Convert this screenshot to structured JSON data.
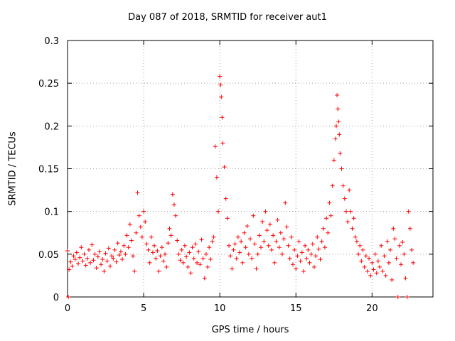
{
  "chart_data": {
    "type": "scatter",
    "title": "Day 087 of 2018, SRMTID for receiver aut1",
    "xlabel": "GPS time / hours",
    "ylabel": "SRMTID / TECUs",
    "xlim": [
      0,
      24
    ],
    "ylim": [
      0,
      0.3
    ],
    "xticks": [
      0,
      5,
      10,
      15,
      20
    ],
    "xtick_labels": [
      "0",
      "5",
      "10",
      "15",
      "20"
    ],
    "yticks": [
      0,
      0.05,
      0.1,
      0.15,
      0.2,
      0.25,
      0.3
    ],
    "ytick_labels": [
      "0",
      "0.05",
      "0.1",
      "0.15",
      "0.2",
      "0.25",
      "0.3"
    ],
    "grid": true,
    "marker": "+",
    "color": "#ff0000",
    "series": [
      {
        "name": "SRMTID",
        "points": [
          [
            0.0,
            0.054
          ],
          [
            0.05,
            0.0
          ],
          [
            0.1,
            0.032
          ],
          [
            0.2,
            0.041
          ],
          [
            0.3,
            0.036
          ],
          [
            0.4,
            0.048
          ],
          [
            0.5,
            0.044
          ],
          [
            0.6,
            0.052
          ],
          [
            0.7,
            0.039
          ],
          [
            0.8,
            0.046
          ],
          [
            0.9,
            0.058
          ],
          [
            1.0,
            0.042
          ],
          [
            1.1,
            0.05
          ],
          [
            1.2,
            0.037
          ],
          [
            1.3,
            0.045
          ],
          [
            1.4,
            0.055
          ],
          [
            1.5,
            0.04
          ],
          [
            1.6,
            0.061
          ],
          [
            1.7,
            0.043
          ],
          [
            1.8,
            0.05
          ],
          [
            1.9,
            0.034
          ],
          [
            2.0,
            0.047
          ],
          [
            2.1,
            0.053
          ],
          [
            2.2,
            0.038
          ],
          [
            2.3,
            0.044
          ],
          [
            2.4,
            0.03
          ],
          [
            2.5,
            0.051
          ],
          [
            2.6,
            0.042
          ],
          [
            2.7,
            0.057
          ],
          [
            2.8,
            0.036
          ],
          [
            2.9,
            0.048
          ],
          [
            3.0,
            0.045
          ],
          [
            3.1,
            0.055
          ],
          [
            3.2,
            0.041
          ],
          [
            3.3,
            0.063
          ],
          [
            3.4,
            0.049
          ],
          [
            3.5,
            0.053
          ],
          [
            3.6,
            0.044
          ],
          [
            3.7,
            0.06
          ],
          [
            3.8,
            0.05
          ],
          [
            3.9,
            0.072
          ],
          [
            4.0,
            0.058
          ],
          [
            4.1,
            0.085
          ],
          [
            4.2,
            0.066
          ],
          [
            4.3,
            0.048
          ],
          [
            4.4,
            0.03
          ],
          [
            4.5,
            0.075
          ],
          [
            4.6,
            0.122
          ],
          [
            4.7,
            0.095
          ],
          [
            4.8,
            0.082
          ],
          [
            4.9,
            0.07
          ],
          [
            5.0,
            0.1
          ],
          [
            5.1,
            0.088
          ],
          [
            5.2,
            0.062
          ],
          [
            5.3,
            0.055
          ],
          [
            5.4,
            0.04
          ],
          [
            5.5,
            0.07
          ],
          [
            5.6,
            0.052
          ],
          [
            5.7,
            0.06
          ],
          [
            5.8,
            0.045
          ],
          [
            5.9,
            0.054
          ],
          [
            6.0,
            0.03
          ],
          [
            6.1,
            0.048
          ],
          [
            6.2,
            0.058
          ],
          [
            6.3,
            0.042
          ],
          [
            6.4,
            0.05
          ],
          [
            6.5,
            0.035
          ],
          [
            6.6,
            0.063
          ],
          [
            6.7,
            0.08
          ],
          [
            6.8,
            0.072
          ],
          [
            6.9,
            0.12
          ],
          [
            7.0,
            0.108
          ],
          [
            7.1,
            0.095
          ],
          [
            7.2,
            0.066
          ],
          [
            7.3,
            0.05
          ],
          [
            7.4,
            0.043
          ],
          [
            7.5,
            0.055
          ],
          [
            7.6,
            0.04
          ],
          [
            7.7,
            0.06
          ],
          [
            7.8,
            0.047
          ],
          [
            7.9,
            0.035
          ],
          [
            8.0,
            0.052
          ],
          [
            8.1,
            0.028
          ],
          [
            8.2,
            0.058
          ],
          [
            8.3,
            0.045
          ],
          [
            8.4,
            0.062
          ],
          [
            8.5,
            0.04
          ],
          [
            8.6,
            0.053
          ],
          [
            8.7,
            0.038
          ],
          [
            8.8,
            0.067
          ],
          [
            8.9,
            0.045
          ],
          [
            9.0,
            0.022
          ],
          [
            9.1,
            0.05
          ],
          [
            9.2,
            0.035
          ],
          [
            9.3,
            0.058
          ],
          [
            9.4,
            0.044
          ],
          [
            9.5,
            0.065
          ],
          [
            9.6,
            0.07
          ],
          [
            9.7,
            0.176
          ],
          [
            9.8,
            0.14
          ],
          [
            9.9,
            0.1
          ],
          [
            10.0,
            0.258
          ],
          [
            10.05,
            0.248
          ],
          [
            10.1,
            0.234
          ],
          [
            10.15,
            0.21
          ],
          [
            10.2,
            0.18
          ],
          [
            10.3,
            0.152
          ],
          [
            10.4,
            0.115
          ],
          [
            10.5,
            0.092
          ],
          [
            10.6,
            0.06
          ],
          [
            10.7,
            0.048
          ],
          [
            10.8,
            0.033
          ],
          [
            10.9,
            0.055
          ],
          [
            11.0,
            0.062
          ],
          [
            11.1,
            0.045
          ],
          [
            11.2,
            0.07
          ],
          [
            11.3,
            0.052
          ],
          [
            11.4,
            0.065
          ],
          [
            11.5,
            0.04
          ],
          [
            11.6,
            0.075
          ],
          [
            11.7,
            0.058
          ],
          [
            11.8,
            0.083
          ],
          [
            11.9,
            0.05
          ],
          [
            12.0,
            0.068
          ],
          [
            12.1,
            0.045
          ],
          [
            12.2,
            0.095
          ],
          [
            12.3,
            0.062
          ],
          [
            12.4,
            0.033
          ],
          [
            12.5,
            0.05
          ],
          [
            12.6,
            0.072
          ],
          [
            12.7,
            0.058
          ],
          [
            12.8,
            0.088
          ],
          [
            12.9,
            0.065
          ],
          [
            13.0,
            0.1
          ],
          [
            13.1,
            0.078
          ],
          [
            13.2,
            0.06
          ],
          [
            13.3,
            0.085
          ],
          [
            13.4,
            0.055
          ],
          [
            13.5,
            0.072
          ],
          [
            13.6,
            0.04
          ],
          [
            13.7,
            0.065
          ],
          [
            13.8,
            0.09
          ],
          [
            13.9,
            0.058
          ],
          [
            14.0,
            0.075
          ],
          [
            14.1,
            0.05
          ],
          [
            14.2,
            0.068
          ],
          [
            14.3,
            0.11
          ],
          [
            14.4,
            0.082
          ],
          [
            14.5,
            0.06
          ],
          [
            14.6,
            0.045
          ],
          [
            14.7,
            0.07
          ],
          [
            14.8,
            0.038
          ],
          [
            14.9,
            0.055
          ],
          [
            15.0,
            0.033
          ],
          [
            15.1,
            0.048
          ],
          [
            15.2,
            0.065
          ],
          [
            15.3,
            0.042
          ],
          [
            15.4,
            0.052
          ],
          [
            15.5,
            0.03
          ],
          [
            15.6,
            0.06
          ],
          [
            15.7,
            0.045
          ],
          [
            15.8,
            0.055
          ],
          [
            15.9,
            0.04
          ],
          [
            16.0,
            0.05
          ],
          [
            16.1,
            0.062
          ],
          [
            16.2,
            0.035
          ],
          [
            16.3,
            0.048
          ],
          [
            16.4,
            0.07
          ],
          [
            16.5,
            0.056
          ],
          [
            16.6,
            0.044
          ],
          [
            16.7,
            0.065
          ],
          [
            16.8,
            0.08
          ],
          [
            16.9,
            0.058
          ],
          [
            17.0,
            0.092
          ],
          [
            17.1,
            0.075
          ],
          [
            17.2,
            0.11
          ],
          [
            17.3,
            0.095
          ],
          [
            17.4,
            0.13
          ],
          [
            17.5,
            0.16
          ],
          [
            17.6,
            0.185
          ],
          [
            17.65,
            0.2
          ],
          [
            17.7,
            0.236
          ],
          [
            17.75,
            0.22
          ],
          [
            17.8,
            0.205
          ],
          [
            17.85,
            0.19
          ],
          [
            17.9,
            0.168
          ],
          [
            18.0,
            0.15
          ],
          [
            18.1,
            0.13
          ],
          [
            18.2,
            0.115
          ],
          [
            18.3,
            0.1
          ],
          [
            18.4,
            0.088
          ],
          [
            18.5,
            0.125
          ],
          [
            18.6,
            0.1
          ],
          [
            18.7,
            0.08
          ],
          [
            18.8,
            0.092
          ],
          [
            18.9,
            0.07
          ],
          [
            19.0,
            0.065
          ],
          [
            19.1,
            0.05
          ],
          [
            19.2,
            0.06
          ],
          [
            19.3,
            0.042
          ],
          [
            19.4,
            0.055
          ],
          [
            19.5,
            0.035
          ],
          [
            19.6,
            0.048
          ],
          [
            19.7,
            0.03
          ],
          [
            19.8,
            0.045
          ],
          [
            19.9,
            0.025
          ],
          [
            20.0,
            0.04
          ],
          [
            20.1,
            0.032
          ],
          [
            20.2,
            0.05
          ],
          [
            20.3,
            0.028
          ],
          [
            20.4,
            0.042
          ],
          [
            20.5,
            0.035
          ],
          [
            20.6,
            0.06
          ],
          [
            20.7,
            0.03
          ],
          [
            20.8,
            0.048
          ],
          [
            20.9,
            0.025
          ],
          [
            21.0,
            0.065
          ],
          [
            21.1,
            0.04
          ],
          [
            21.2,
            0.055
          ],
          [
            21.3,
            0.02
          ],
          [
            21.4,
            0.08
          ],
          [
            21.5,
            0.068
          ],
          [
            21.6,
            0.045
          ],
          [
            21.7,
            0.0
          ],
          [
            21.8,
            0.06
          ],
          [
            21.9,
            0.038
          ],
          [
            22.0,
            0.064
          ],
          [
            22.1,
            0.05
          ],
          [
            22.2,
            0.022
          ],
          [
            22.3,
            0.0
          ],
          [
            22.4,
            0.1
          ],
          [
            22.5,
            0.08
          ],
          [
            22.6,
            0.055
          ],
          [
            22.7,
            0.04
          ]
        ]
      }
    ]
  }
}
